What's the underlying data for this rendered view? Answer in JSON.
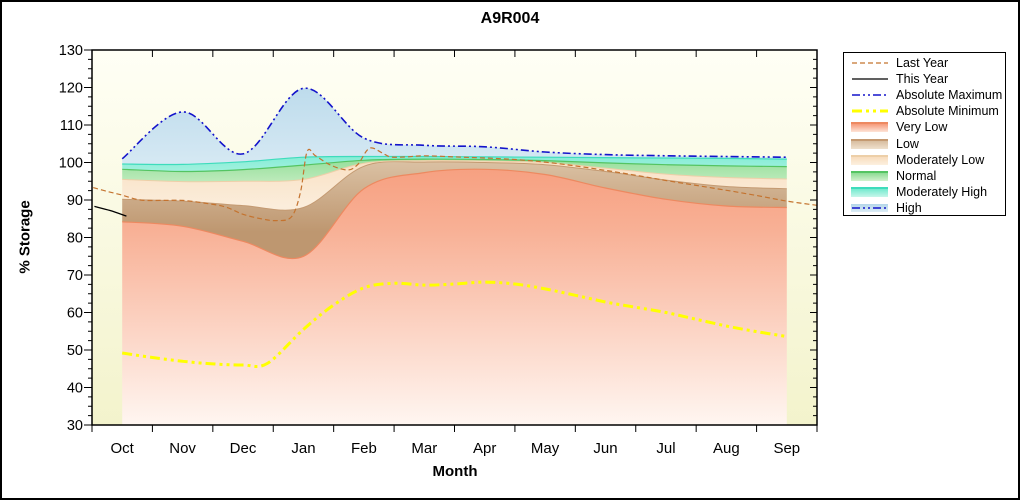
{
  "title": "A9R004",
  "axes": {
    "y_label": "% Storage",
    "x_label": "Month",
    "y_ticks": [
      130,
      120,
      110,
      100,
      90,
      80,
      70,
      60,
      50,
      40,
      30
    ],
    "y_minor_step": 2.5,
    "x_categories": [
      "Oct",
      "Nov",
      "Dec",
      "Jan",
      "Feb",
      "Mar",
      "Apr",
      "May",
      "Jun",
      "Jul",
      "Aug",
      "Sep"
    ]
  },
  "legend": {
    "items": [
      {
        "label": "Last Year",
        "swatch": "line",
        "color": "#C4732F",
        "dash": "5 3",
        "width": 1.2
      },
      {
        "label": "This Year",
        "swatch": "line",
        "color": "#000000",
        "dash": "",
        "width": 1.2
      },
      {
        "label": "Absolute Maximum",
        "swatch": "line",
        "color": "#1313CB",
        "dash": "8 3 2 3 2 3",
        "width": 1.6
      },
      {
        "label": "Absolute Minimum",
        "swatch": "line",
        "color": "#FFFF00",
        "dash": "10 4 3 4 3 4",
        "width": 3
      },
      {
        "label": "Very Low",
        "swatch": "band",
        "top": "#F69A79",
        "bottom": "#FDE4D8",
        "edge": "#ED8960"
      },
      {
        "label": "Low",
        "swatch": "band",
        "top": "#D8BD9F",
        "bottom": "#EFE0CD",
        "edge": "#C49A72"
      },
      {
        "label": "Moderately Low",
        "swatch": "band",
        "top": "#F8DDBE",
        "bottom": "#FCF0DF",
        "edge": "#EDCFA8"
      },
      {
        "label": "Normal",
        "swatch": "band",
        "top": "#8CDC93",
        "bottom": "#D2F1CE",
        "edge": "#54C462"
      },
      {
        "label": "Moderately High",
        "swatch": "band",
        "top": "#74EACF",
        "bottom": "#C6F6EA",
        "edge": "#3EDCBC"
      },
      {
        "label": "High",
        "swatch": "band-line",
        "top": "#B3D6E9",
        "bottom": "#DCECF5",
        "edge": "#1313CB",
        "dash": "8 3 2 3 2 3"
      }
    ]
  },
  "chart_data": {
    "type": "area",
    "title": "A9R004",
    "xlabel": "Month",
    "ylabel": "% Storage",
    "ylim": [
      30,
      130
    ],
    "x_unit": "month index, 0 = Oct center ... 11 = Sep center",
    "categories": [
      "Oct",
      "Nov",
      "Dec",
      "Jan",
      "Feb",
      "Mar",
      "Apr",
      "May",
      "Jun",
      "Jul",
      "Aug",
      "Sep"
    ],
    "grid": false,
    "legend_position": "outside-top-right",
    "band_boundaries": {
      "note": "monthly values (% storage) of each band's top edge; bands span Oct center to Sep center",
      "very_low_top": [
        84.2,
        83.0,
        79.0,
        75.0,
        93.0,
        97.3,
        98.2,
        96.8,
        93.2,
        90.2,
        88.4,
        88.0
      ],
      "low_top": [
        90.2,
        89.7,
        88.5,
        88.0,
        99.0,
        100.1,
        100.0,
        99.4,
        97.6,
        95.3,
        93.6,
        93.0
      ],
      "moderately_low_top": [
        95.5,
        94.9,
        95.0,
        95.5,
        99.8,
        100.5,
        100.4,
        100.0,
        98.5,
        96.9,
        96.0,
        95.6
      ],
      "normal_top": [
        98.2,
        97.6,
        98.1,
        99.3,
        100.6,
        100.9,
        100.8,
        100.5,
        99.9,
        99.4,
        99.1,
        98.9
      ],
      "moderately_high_top": [
        99.6,
        99.5,
        100.2,
        101.4,
        101.6,
        101.6,
        101.5,
        101.4,
        101.3,
        101.2,
        101.1,
        100.9
      ],
      "high_top_is_absolute_maximum": true
    },
    "series": {
      "absolute_maximum": {
        "x": [
          0,
          1,
          2,
          3,
          4,
          5,
          6,
          7,
          8,
          9,
          10,
          11
        ],
        "y": [
          101.0,
          113.5,
          102.3,
          119.8,
          106.5,
          104.6,
          104.2,
          102.8,
          102.1,
          101.8,
          101.6,
          101.4
        ]
      },
      "absolute_minimum": {
        "x": [
          0,
          0.5,
          1,
          1.5,
          2,
          2.4,
          3,
          3.5,
          4,
          4.5,
          5,
          5.5,
          6,
          6.5,
          7,
          7.5,
          8,
          8.5,
          9,
          9.5,
          10,
          10.5,
          11
        ],
        "y": [
          49.2,
          48,
          47,
          46.3,
          46,
          46.4,
          55.5,
          62,
          66.6,
          67.8,
          67.3,
          67.6,
          68.1,
          67.6,
          66.3,
          64.6,
          62.8,
          61.4,
          60,
          58.2,
          56.4,
          54.9,
          53.6
        ]
      },
      "last_year": {
        "x": [
          -0.48,
          -0.25,
          0,
          0.3,
          0.7,
          1,
          1.35,
          1.7,
          2,
          2.3,
          2.55,
          2.8,
          2.95,
          3.06,
          3.2,
          3.45,
          3.73,
          3.9,
          4.09,
          4.3,
          4.44,
          4.7,
          5,
          5.5,
          6,
          6.5,
          7,
          7.5,
          8,
          8.5,
          9,
          9.5,
          10,
          10.5,
          11,
          11.5
        ],
        "y": [
          93.3,
          92.3,
          91.3,
          90,
          89.9,
          89.9,
          89.2,
          88.2,
          86.2,
          85,
          84.5,
          85.5,
          92,
          102.9,
          101.8,
          99.3,
          98,
          99.5,
          103.8,
          102.6,
          101.5,
          101.5,
          101.8,
          101.5,
          101.2,
          100.8,
          100.1,
          99.1,
          97.9,
          96.6,
          95.2,
          93.9,
          92.6,
          91.2,
          89.7,
          88.6
        ]
      },
      "this_year": {
        "x": [
          -0.46,
          -0.2,
          0.07
        ],
        "y": [
          88.3,
          87.2,
          85.7
        ]
      }
    },
    "colors": {
      "plot_bg_top": "#FFFFF5",
      "plot_bg_bottom": "#F3F3CC",
      "very_low": {
        "top": "#F69A79",
        "mid": "#F8B095",
        "bottom": "#FFF6F1",
        "edge": "#ED8960"
      },
      "low": {
        "top": "#DCC3A6",
        "bottom": "#BE9770",
        "edge": "#C49A72"
      },
      "moderately_low": {
        "top": "#F9DFC1",
        "bottom": "#FBEDDB",
        "edge": "#EDCFA8"
      },
      "normal": {
        "top": "#86DA8E",
        "bottom": "#CFF0CA",
        "edge": "#54C462"
      },
      "moderately_high": {
        "top": "#74EACF",
        "bottom": "#BDF5E8",
        "edge": "#3EDCBC"
      },
      "high": {
        "top": "#B3D6E9",
        "bottom": "#D8EAF4"
      },
      "absolute_maximum": "#1313CB",
      "absolute_minimum": "#FFFF00",
      "last_year": "#C4732F",
      "this_year": "#000000",
      "axis": "#000000"
    }
  }
}
